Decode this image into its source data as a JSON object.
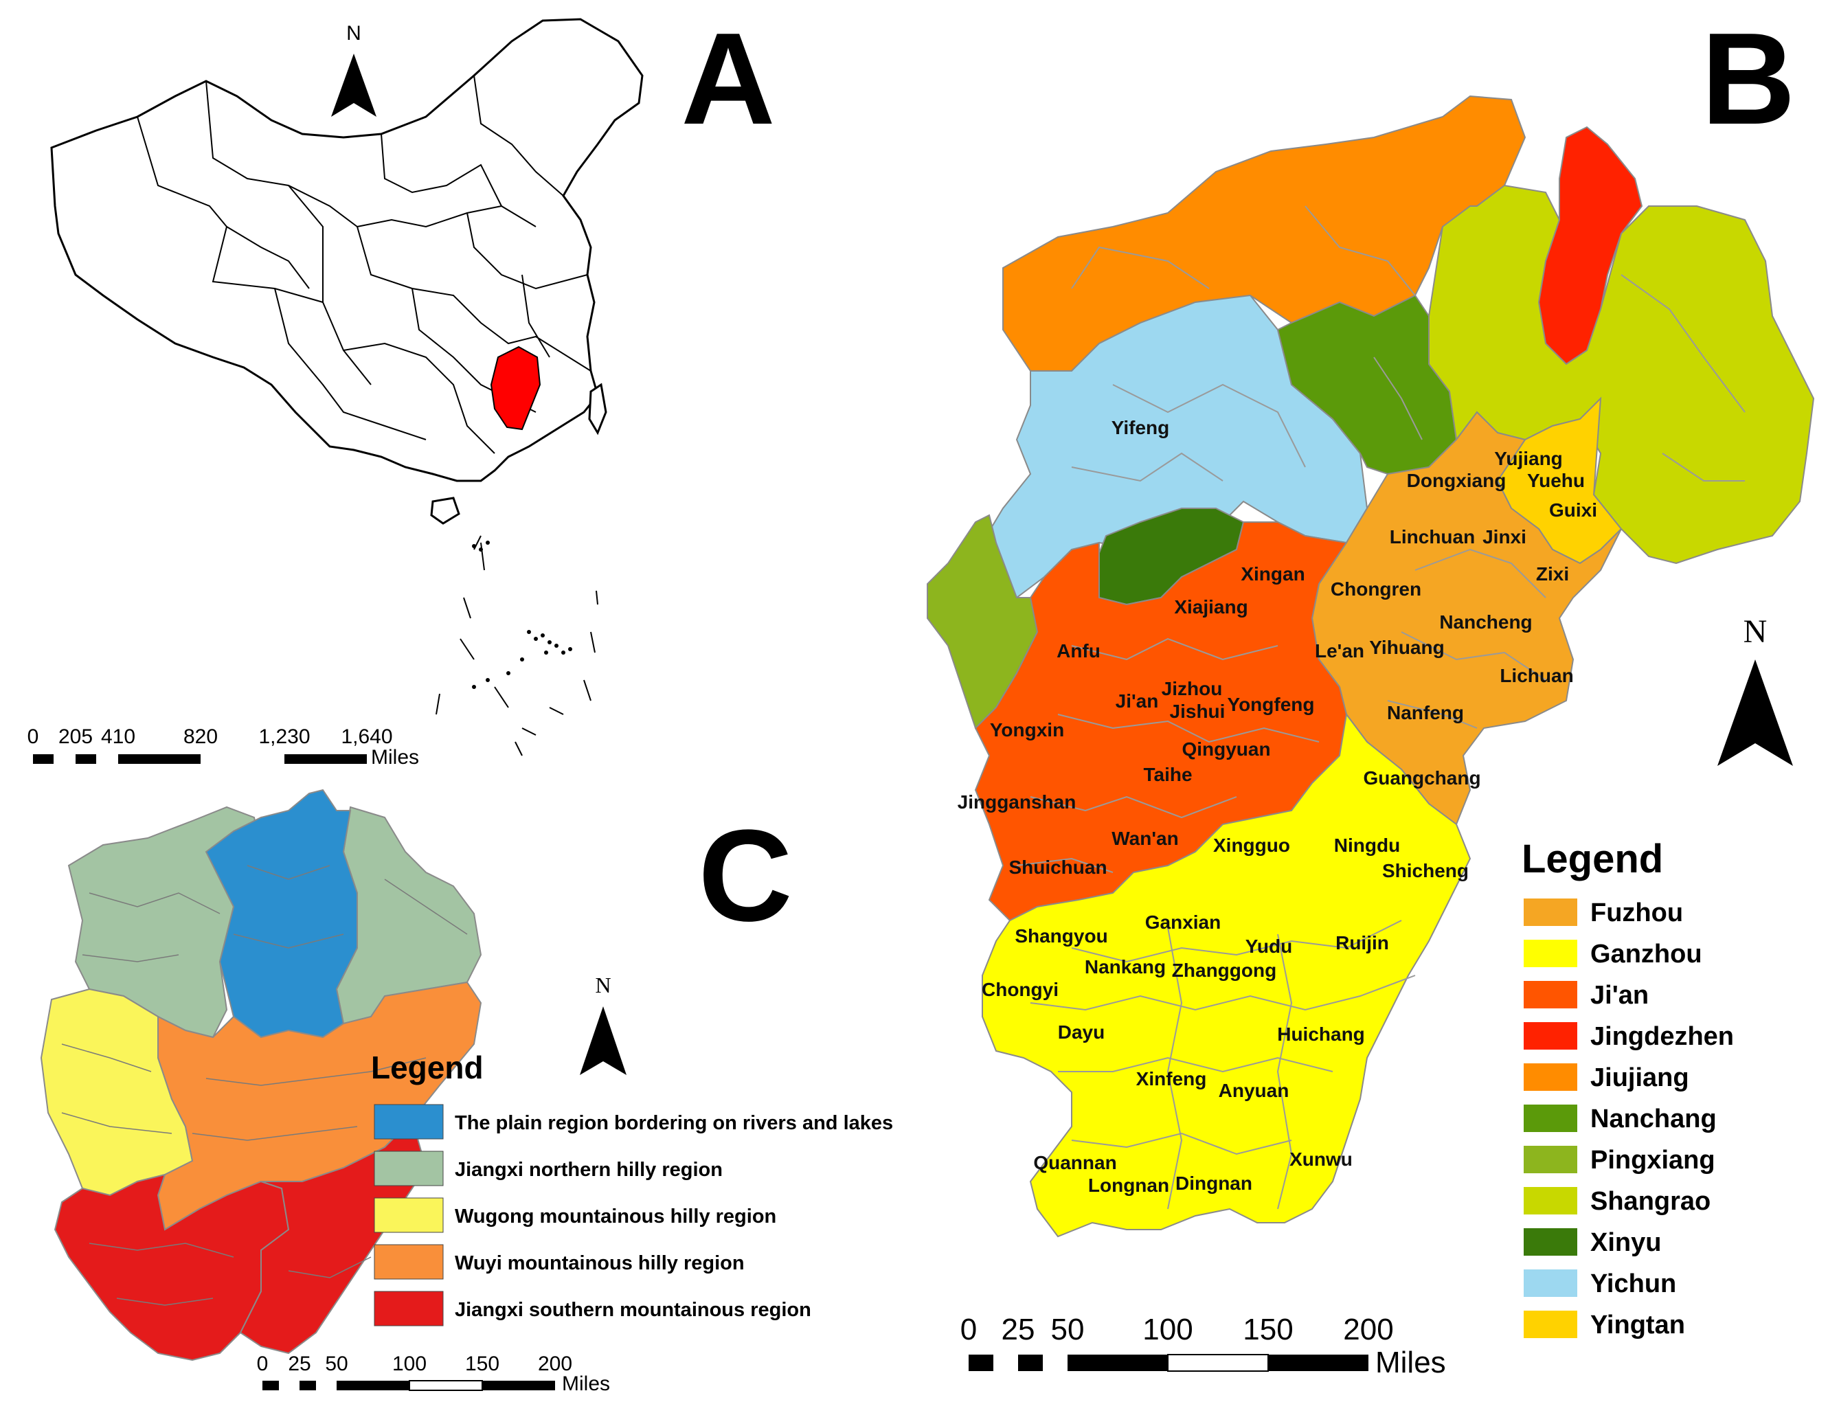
{
  "panels": {
    "a": "A",
    "b": "B",
    "c": "C"
  },
  "north_label": "N",
  "colors": {
    "fuzhou": "#f5a623",
    "ganzhou": "#ffff00",
    "jian": "#ff5500",
    "jingdezhen": "#ff2200",
    "jiujiang": "#ff8c00",
    "nanchang": "#5b9a0a",
    "pingxiang": "#8db51e",
    "shangrao": "#c8d800",
    "xinyu": "#3a7a0a",
    "yichun": "#9dd8f0",
    "yingtan": "#ffd200",
    "plain": "#2b8fcf",
    "northern_hilly": "#a3c4a3",
    "wugong": "#faf55a",
    "wuyi": "#f98f3a",
    "southern": "#e41b1b",
    "highlight": "#ff0000"
  },
  "map_a": {
    "scalebar": {
      "ticks": [
        "0",
        "205",
        "410",
        "820",
        "1,230",
        "1,640"
      ],
      "unit": "Miles"
    }
  },
  "map_b": {
    "county_labels": [
      "Yifeng",
      "Yujiang",
      "Dongxiang",
      "Yuehu",
      "Guixi",
      "Linchuan",
      "Jinxi",
      "Xingan",
      "Chongren",
      "Zixi",
      "Xiajiang",
      "Nancheng",
      "Anfu",
      "Le'an",
      "Yihuang",
      "Jizhou",
      "Yongfeng",
      "Lichuan",
      "Ji'an",
      "Jishui",
      "Nanfeng",
      "Yongxin",
      "Qingyuan",
      "Taihe",
      "Guangchang",
      "Jingganshan",
      "Wan'an",
      "Xingguo",
      "Ningdu",
      "Shicheng",
      "Shuichuan",
      "Ganxian",
      "Shangyou",
      "Yudu",
      "Ruijin",
      "Nankang",
      "Zhanggong",
      "Chongyi",
      "Huichang",
      "Dayu",
      "Xinfeng",
      "Anyuan",
      "Quannan",
      "Xunwu",
      "Longnan",
      "Dingnan"
    ],
    "legend": {
      "title": "Legend",
      "items": [
        "Fuzhou",
        "Ganzhou",
        "Ji'an",
        "Jingdezhen",
        "Jiujiang",
        "Nanchang",
        "Pingxiang",
        "Shangrao",
        "Xinyu",
        "Yichun",
        "Yingtan"
      ]
    },
    "scalebar": {
      "ticks": [
        "0",
        "25",
        "50",
        "100",
        "150",
        "200"
      ],
      "unit": "Miles"
    }
  },
  "map_c": {
    "legend": {
      "title": "Legend",
      "items": [
        "The plain region bordering on rivers and lakes",
        "Jiangxi northern hilly region",
        "Wugong mountainous hilly region",
        "Wuyi mountainous hilly region",
        "Jiangxi southern mountainous region"
      ]
    },
    "scalebar": {
      "ticks": [
        "0",
        "25",
        "50",
        "100",
        "150",
        "200"
      ],
      "unit": "Miles"
    }
  }
}
